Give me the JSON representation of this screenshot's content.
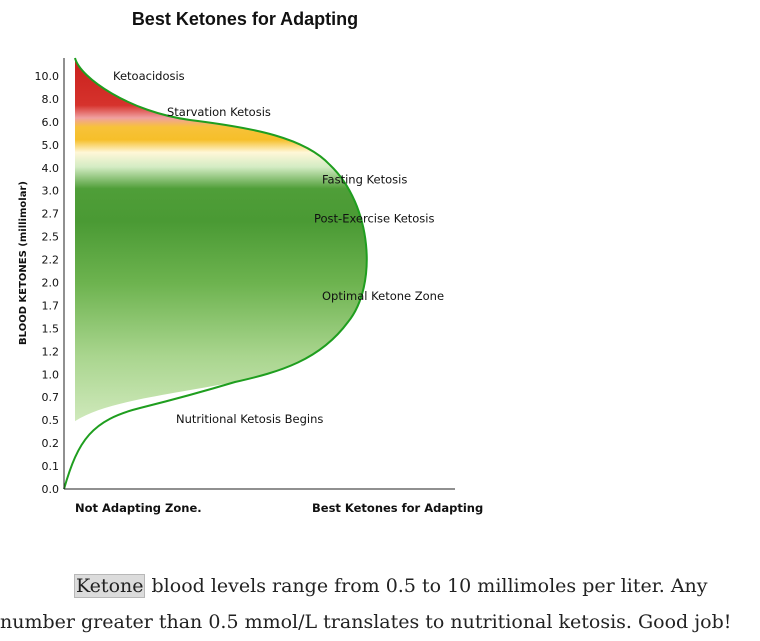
{
  "chart_data": {
    "type": "area",
    "title": "Best Ketones for Adapting",
    "ylabel": "BLOOD KETONES (millimolar)",
    "y_ticks": [
      "0.0",
      "0.1",
      "0.2",
      "0.5",
      "0.7",
      "1.0",
      "1.2",
      "1.5",
      "1.7",
      "2.0",
      "2.2",
      "2.5",
      "2.7",
      "3.0",
      "4.0",
      "5.0",
      "6.0",
      "8.0",
      "10.0"
    ],
    "x_categories": [
      "Not Adapting Zone.",
      "Best Ketones for Adapting"
    ],
    "zones": [
      {
        "label": "Ketoacidosis",
        "value": "10.0",
        "color": "#d63a32"
      },
      {
        "label": "Starvation Ketosis",
        "value": "6.0",
        "color": "#f6bf2a"
      },
      {
        "label": "Fasting Ketosis",
        "value": "3.5",
        "color": "#4f9e38"
      },
      {
        "label": "Post-Exercise Ketosis",
        "value": "2.7",
        "color": "#4f9e38"
      },
      {
        "label": "Optimal Ketone Zone",
        "value": "1.7",
        "color": "#6fb452"
      },
      {
        "label": "Nutritional Ketosis Begins",
        "value": "0.5",
        "color": "#c8e6b2"
      }
    ],
    "curve_color": "#1f9e1f"
  },
  "caption": {
    "highlight": "Ketone",
    "line1_rest": " blood levels range from 0.5 to 10 millimoles per liter. Any",
    "line2": "number greater than 0.5 mmol/L translates to nutritional ketosis. Good job!"
  }
}
